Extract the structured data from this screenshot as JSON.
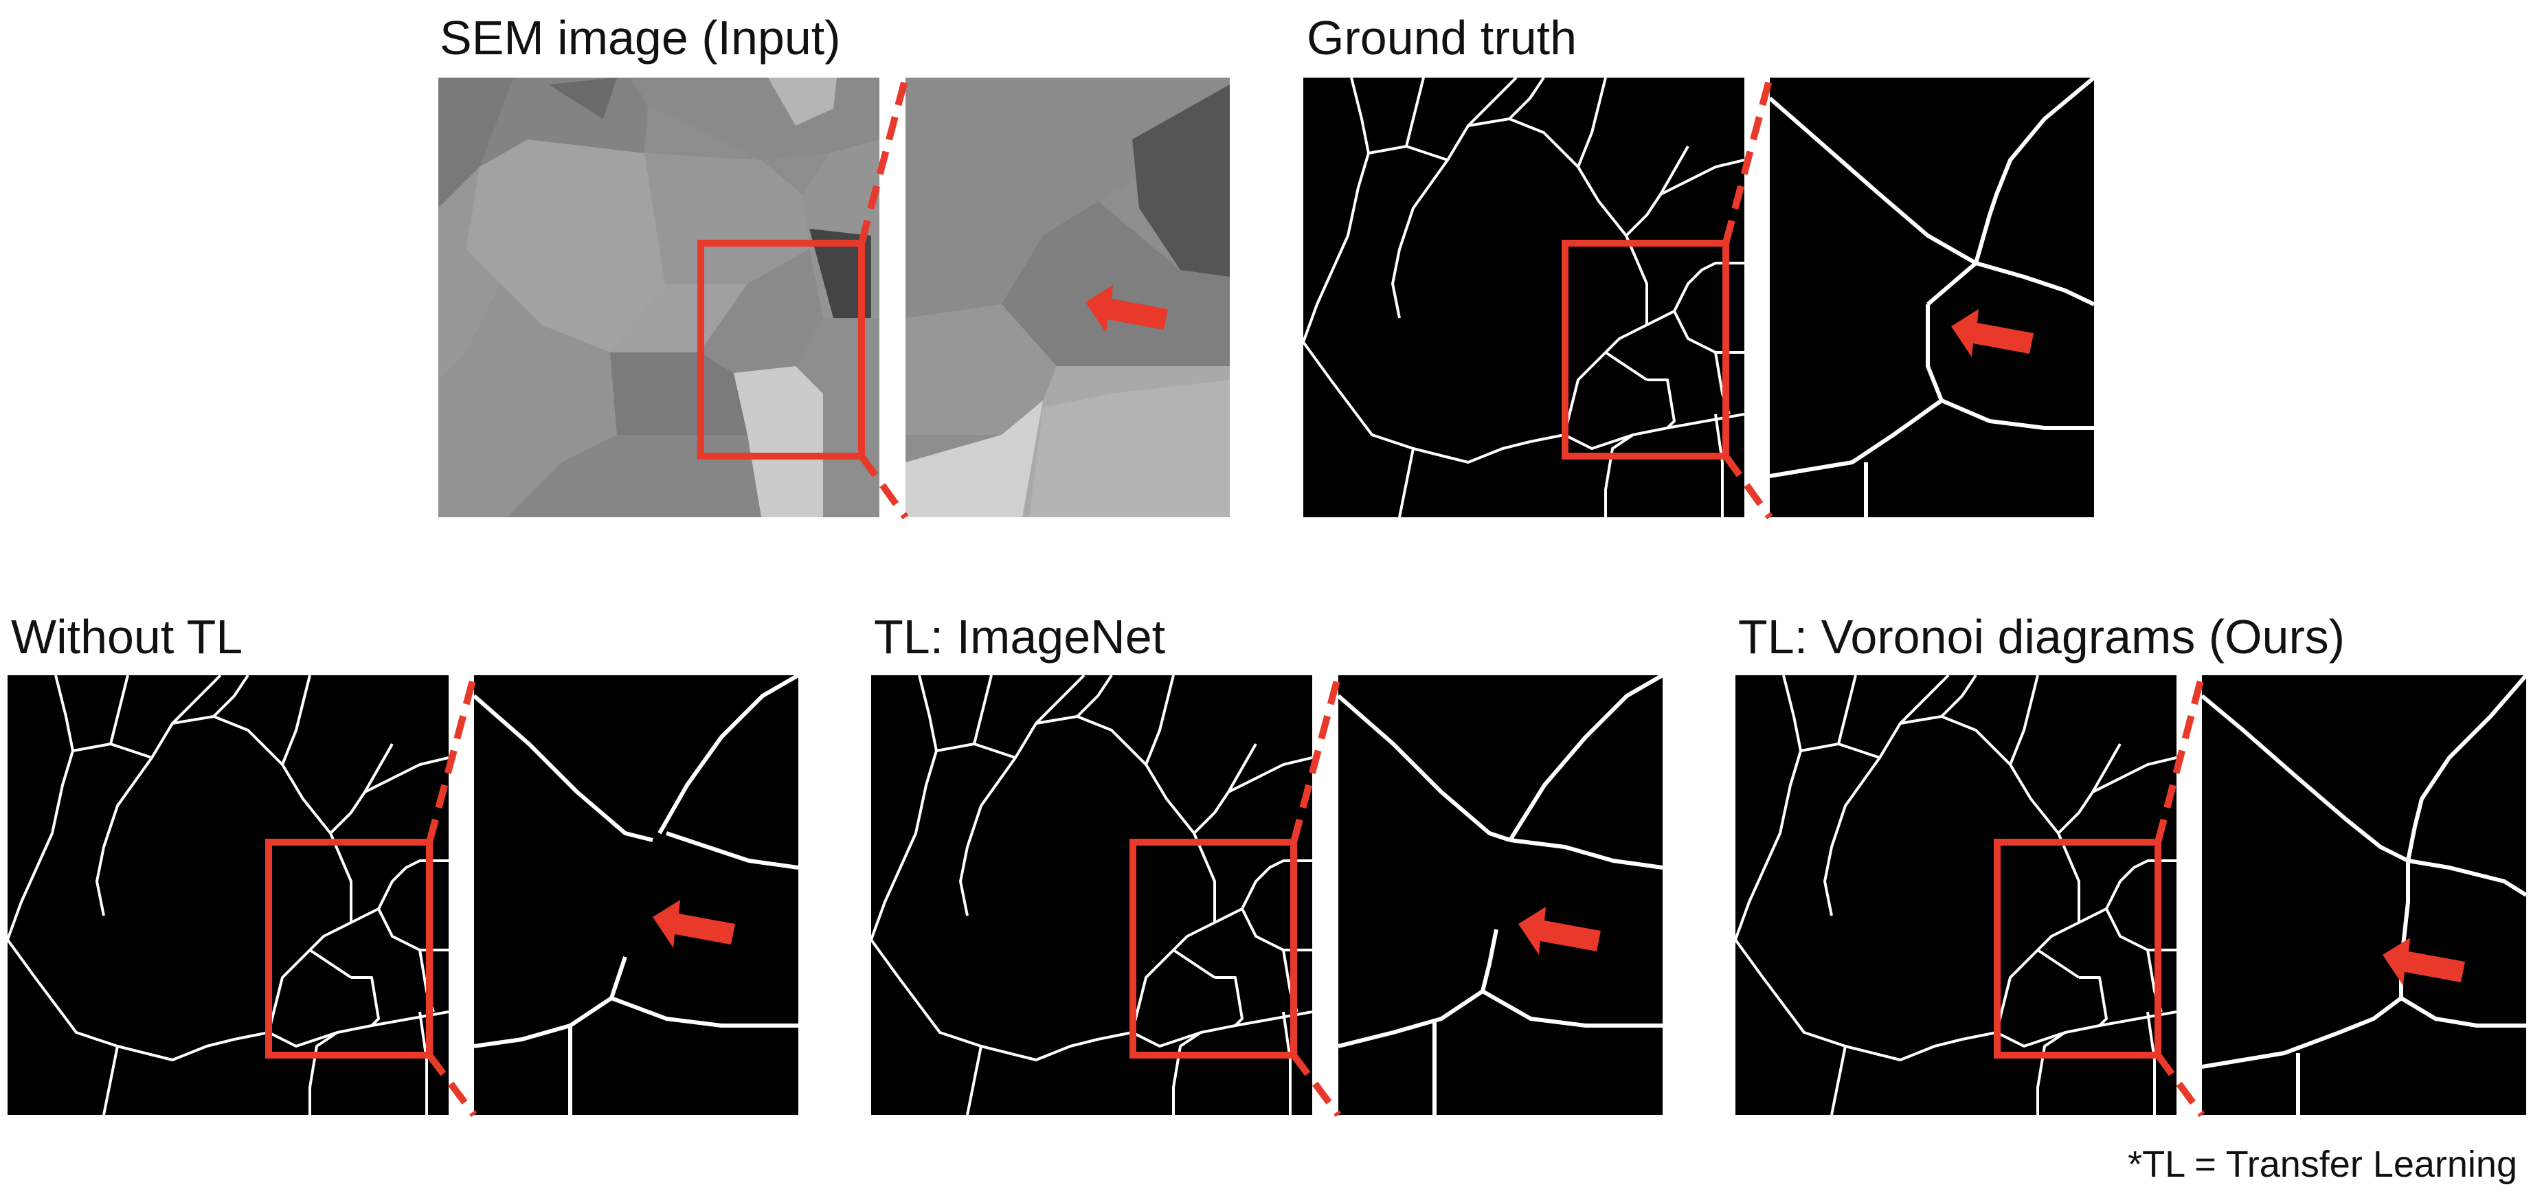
{
  "panels": {
    "sem": {
      "title": "SEM image (Input)"
    },
    "gt": {
      "title": "Ground truth"
    },
    "without_tl": {
      "title": "Without TL"
    },
    "imagenet": {
      "title": "TL: ImageNet"
    },
    "voronoi": {
      "title": "TL: Voronoi diagrams (Ours)"
    }
  },
  "footnote": "*TL = Transfer Learning",
  "colors": {
    "highlight": "#e8392a",
    "boundary": "#ffffff",
    "background": "#000000"
  }
}
